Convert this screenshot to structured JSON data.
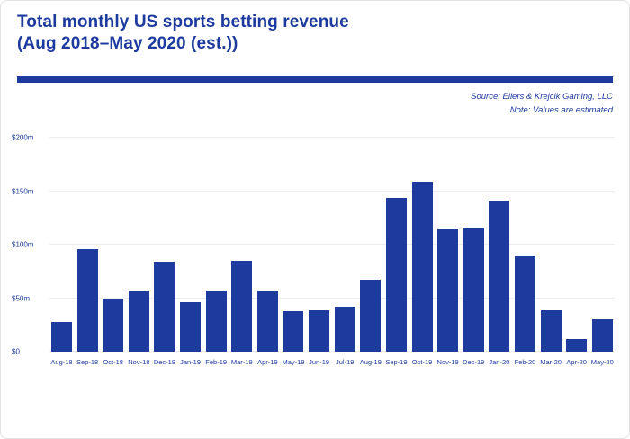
{
  "page": {
    "title_line1": "Total monthly US sports betting revenue",
    "title_line2": "(Aug 2018–May 2020 (est.))",
    "source": "Source: Eilers & Krejcik Gaming, LLC",
    "note": "Note: Values are estimated"
  },
  "colors": {
    "accent": "#1d3a9e",
    "bar": "#1d3a9e",
    "gridline": "#ededed"
  },
  "chart_data": {
    "type": "bar",
    "title": "Total monthly US sports betting revenue (Aug 2018–May 2020 (est.))",
    "categories": [
      "Aug-18",
      "Sep-18",
      "Oct-18",
      "Nov-18",
      "Dec-18",
      "Jan-19",
      "Feb-19",
      "Mar-19",
      "Apr-19",
      "May-19",
      "Jun-19",
      "Jul-19",
      "Aug-19",
      "Sep-19",
      "Oct-19",
      "Nov-19",
      "Dec-19",
      "Jan-20",
      "Feb-20",
      "Mar-20",
      "Apr-20",
      "May-20"
    ],
    "values": [
      28,
      96,
      50,
      57,
      84,
      46,
      57,
      85,
      57,
      38,
      39,
      42,
      67,
      144,
      159,
      114,
      116,
      141,
      89,
      39,
      12,
      30
    ],
    "xlabel": "",
    "ylabel": "",
    "ylim": [
      0,
      200
    ],
    "yticks": [
      0,
      50,
      100,
      150,
      200
    ],
    "ytick_labels": [
      "$0",
      "$50m",
      "$100m",
      "$150m",
      "$200m"
    ],
    "grid": true,
    "legend": "none",
    "units": "USD millions"
  }
}
